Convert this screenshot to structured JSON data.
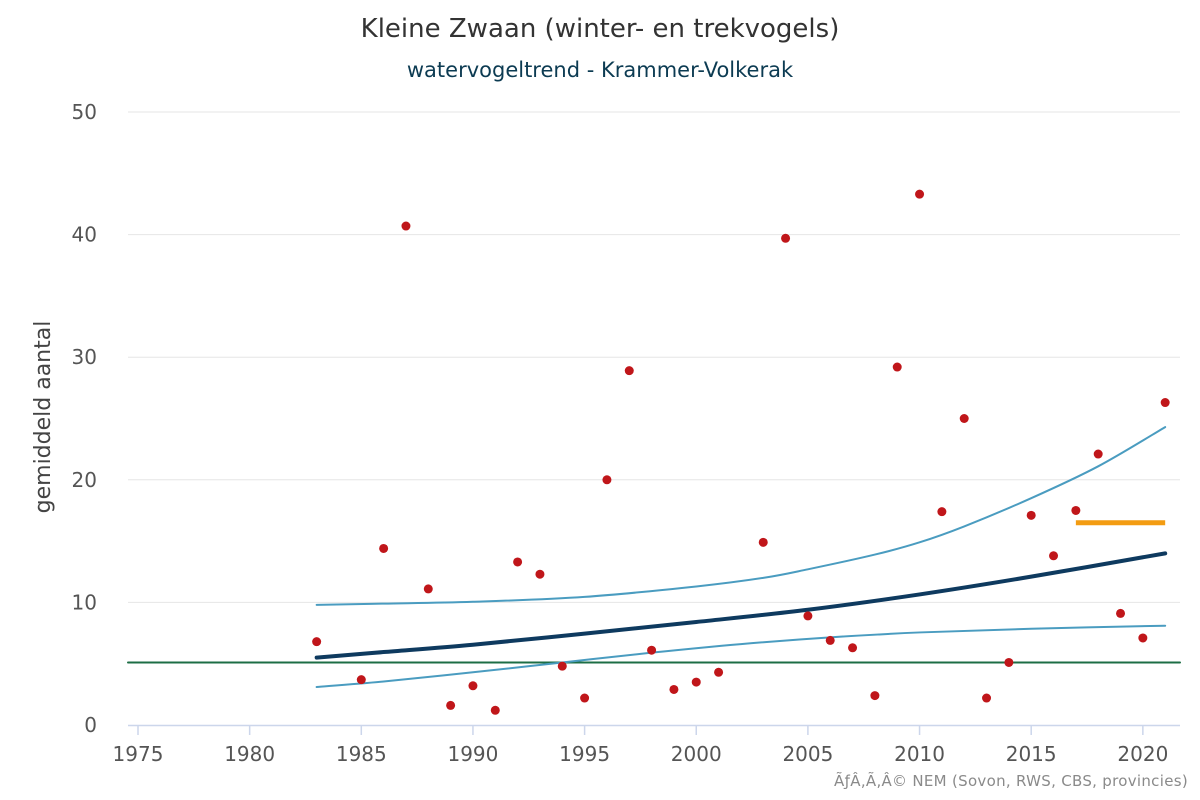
{
  "chart_data": {
    "type": "scatter",
    "title": "Kleine Zwaan (winter- en trekvogels)",
    "subtitle": "watervogeltrend - Krammer-Volkerak",
    "ylabel": "gemiddeld aantal",
    "xlabel": "",
    "xlim": [
      1974,
      2022
    ],
    "ylim": [
      0,
      50
    ],
    "x_ticks": [
      1975,
      1980,
      1985,
      1990,
      1995,
      2000,
      2005,
      2010,
      2015,
      2020
    ],
    "y_ticks": [
      0,
      10,
      20,
      30,
      40,
      50
    ],
    "grid": "horizontal",
    "credits": "ÃƒÂ‚Ã‚Â© NEM (Sovon, RWS, CBS, provincies)",
    "colors": {
      "points": "#c0161a",
      "trend": "#0e3a5f",
      "confidence": "#4a9cc0",
      "reference": "#1d6e45",
      "recent_mean": "#f39c12",
      "grid": "#e6e6e6",
      "axis": "#ccd6eb"
    },
    "series": [
      {
        "kind": "points",
        "x": [
          1983,
          1985,
          1986,
          1987,
          1988,
          1989,
          1990,
          1991,
          1992,
          1993,
          1994,
          1995,
          1996,
          1997,
          1998,
          1999,
          2000,
          2001,
          2003,
          2004,
          2005,
          2006,
          2007,
          2008,
          2009,
          2010,
          2011,
          2012,
          2013,
          2014,
          2015,
          2016,
          2017,
          2018,
          2019,
          2020,
          2021
        ],
        "y": [
          6.8,
          3.7,
          14.4,
          40.7,
          11.1,
          1.6,
          3.2,
          1.2,
          13.3,
          12.3,
          4.8,
          2.2,
          20.0,
          28.9,
          6.1,
          2.9,
          3.5,
          4.3,
          14.9,
          39.7,
          8.9,
          6.9,
          6.3,
          2.4,
          29.2,
          43.3,
          17.4,
          25.0,
          2.2,
          5.1,
          17.1,
          13.8,
          17.5,
          22.1,
          9.1,
          7.1,
          26.3
        ]
      },
      {
        "kind": "trend",
        "x": [
          1983,
          1986,
          1990,
          1995,
          2000,
          2005,
          2010,
          2015,
          2021
        ],
        "y": [
          5.5,
          5.95,
          6.55,
          7.45,
          8.4,
          9.4,
          10.65,
          12.1,
          14.0
        ]
      },
      {
        "kind": "upper-ci",
        "x": [
          1983,
          1986,
          1990,
          1995,
          2000,
          2003,
          2005,
          2008,
          2010,
          2012,
          2015,
          2018,
          2021
        ],
        "y": [
          9.8,
          9.9,
          10.05,
          10.45,
          11.3,
          12.0,
          12.7,
          13.9,
          14.9,
          16.2,
          18.5,
          21.1,
          24.3
        ]
      },
      {
        "kind": "lower-ci",
        "x": [
          1983,
          1986,
          1990,
          1994,
          1998,
          2002,
          2006,
          2010,
          2015,
          2021
        ],
        "y": [
          3.1,
          3.55,
          4.3,
          5.1,
          5.9,
          6.6,
          7.15,
          7.55,
          7.85,
          8.1
        ]
      },
      {
        "kind": "reference",
        "x": [
          1974,
          2021
        ],
        "y": [
          5.1,
          5.1
        ]
      },
      {
        "kind": "recent-mean",
        "x": [
          2017,
          2021
        ],
        "y": [
          16.5,
          16.5
        ]
      }
    ]
  }
}
